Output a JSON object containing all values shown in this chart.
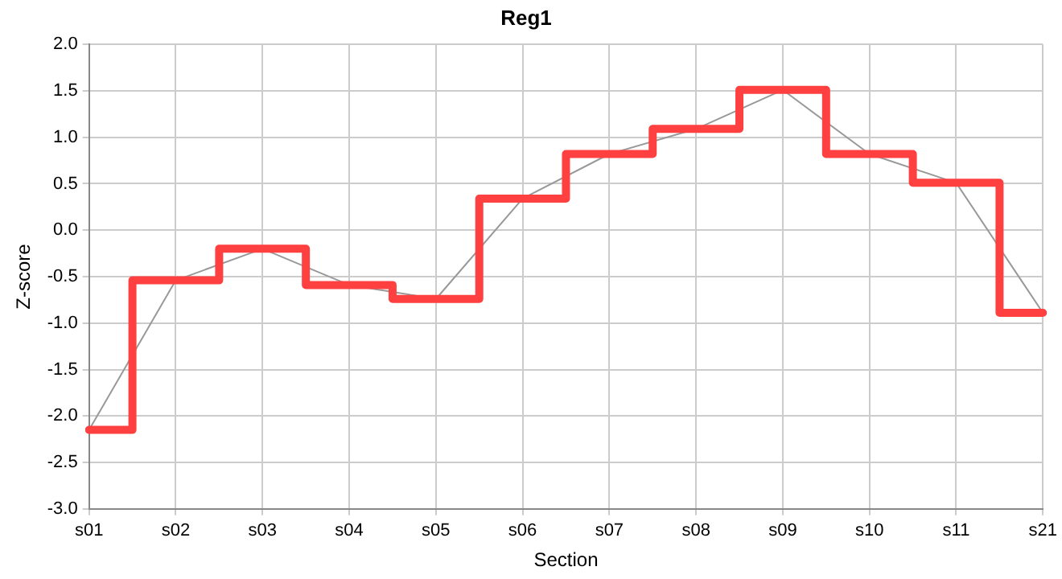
{
  "chart_data": {
    "type": "step",
    "title": "Reg1",
    "xlabel": "Section",
    "ylabel": "Z-score",
    "categories": [
      "s01",
      "s02",
      "s03",
      "s04",
      "s05",
      "s06",
      "s07",
      "s08",
      "s09",
      "s10",
      "s11",
      "s21"
    ],
    "series": [
      {
        "type": "step",
        "color": "#ff4040",
        "values": [
          -2.15,
          -0.54,
          -0.2,
          -0.59,
          -0.74,
          0.34,
          0.82,
          1.09,
          1.51,
          0.82,
          0.51,
          -0.89
        ]
      },
      {
        "type": "line",
        "color": "#999999",
        "values": [
          -2.15,
          -0.54,
          -0.2,
          -0.59,
          -0.74,
          0.34,
          0.82,
          1.09,
          1.51,
          0.82,
          0.51,
          -0.89
        ]
      }
    ],
    "ylim": [
      -3,
      2
    ],
    "yticks": [
      {
        "value": -3,
        "label": "-3.0"
      },
      {
        "value": -2.5,
        "label": "-2.5"
      },
      {
        "value": -2,
        "label": "-2.0"
      },
      {
        "value": -1.5,
        "label": "-1.5"
      },
      {
        "value": -1,
        "label": "-1.0"
      },
      {
        "value": -0.5,
        "label": "-0.5"
      },
      {
        "value": 0,
        "label": "0.0"
      },
      {
        "value": 0.5,
        "label": "0.5"
      },
      {
        "value": 1,
        "label": "1.0"
      },
      {
        "value": 1.5,
        "label": "1.5"
      },
      {
        "value": 2,
        "label": "2.0"
      }
    ],
    "grid": true,
    "legend": false
  }
}
